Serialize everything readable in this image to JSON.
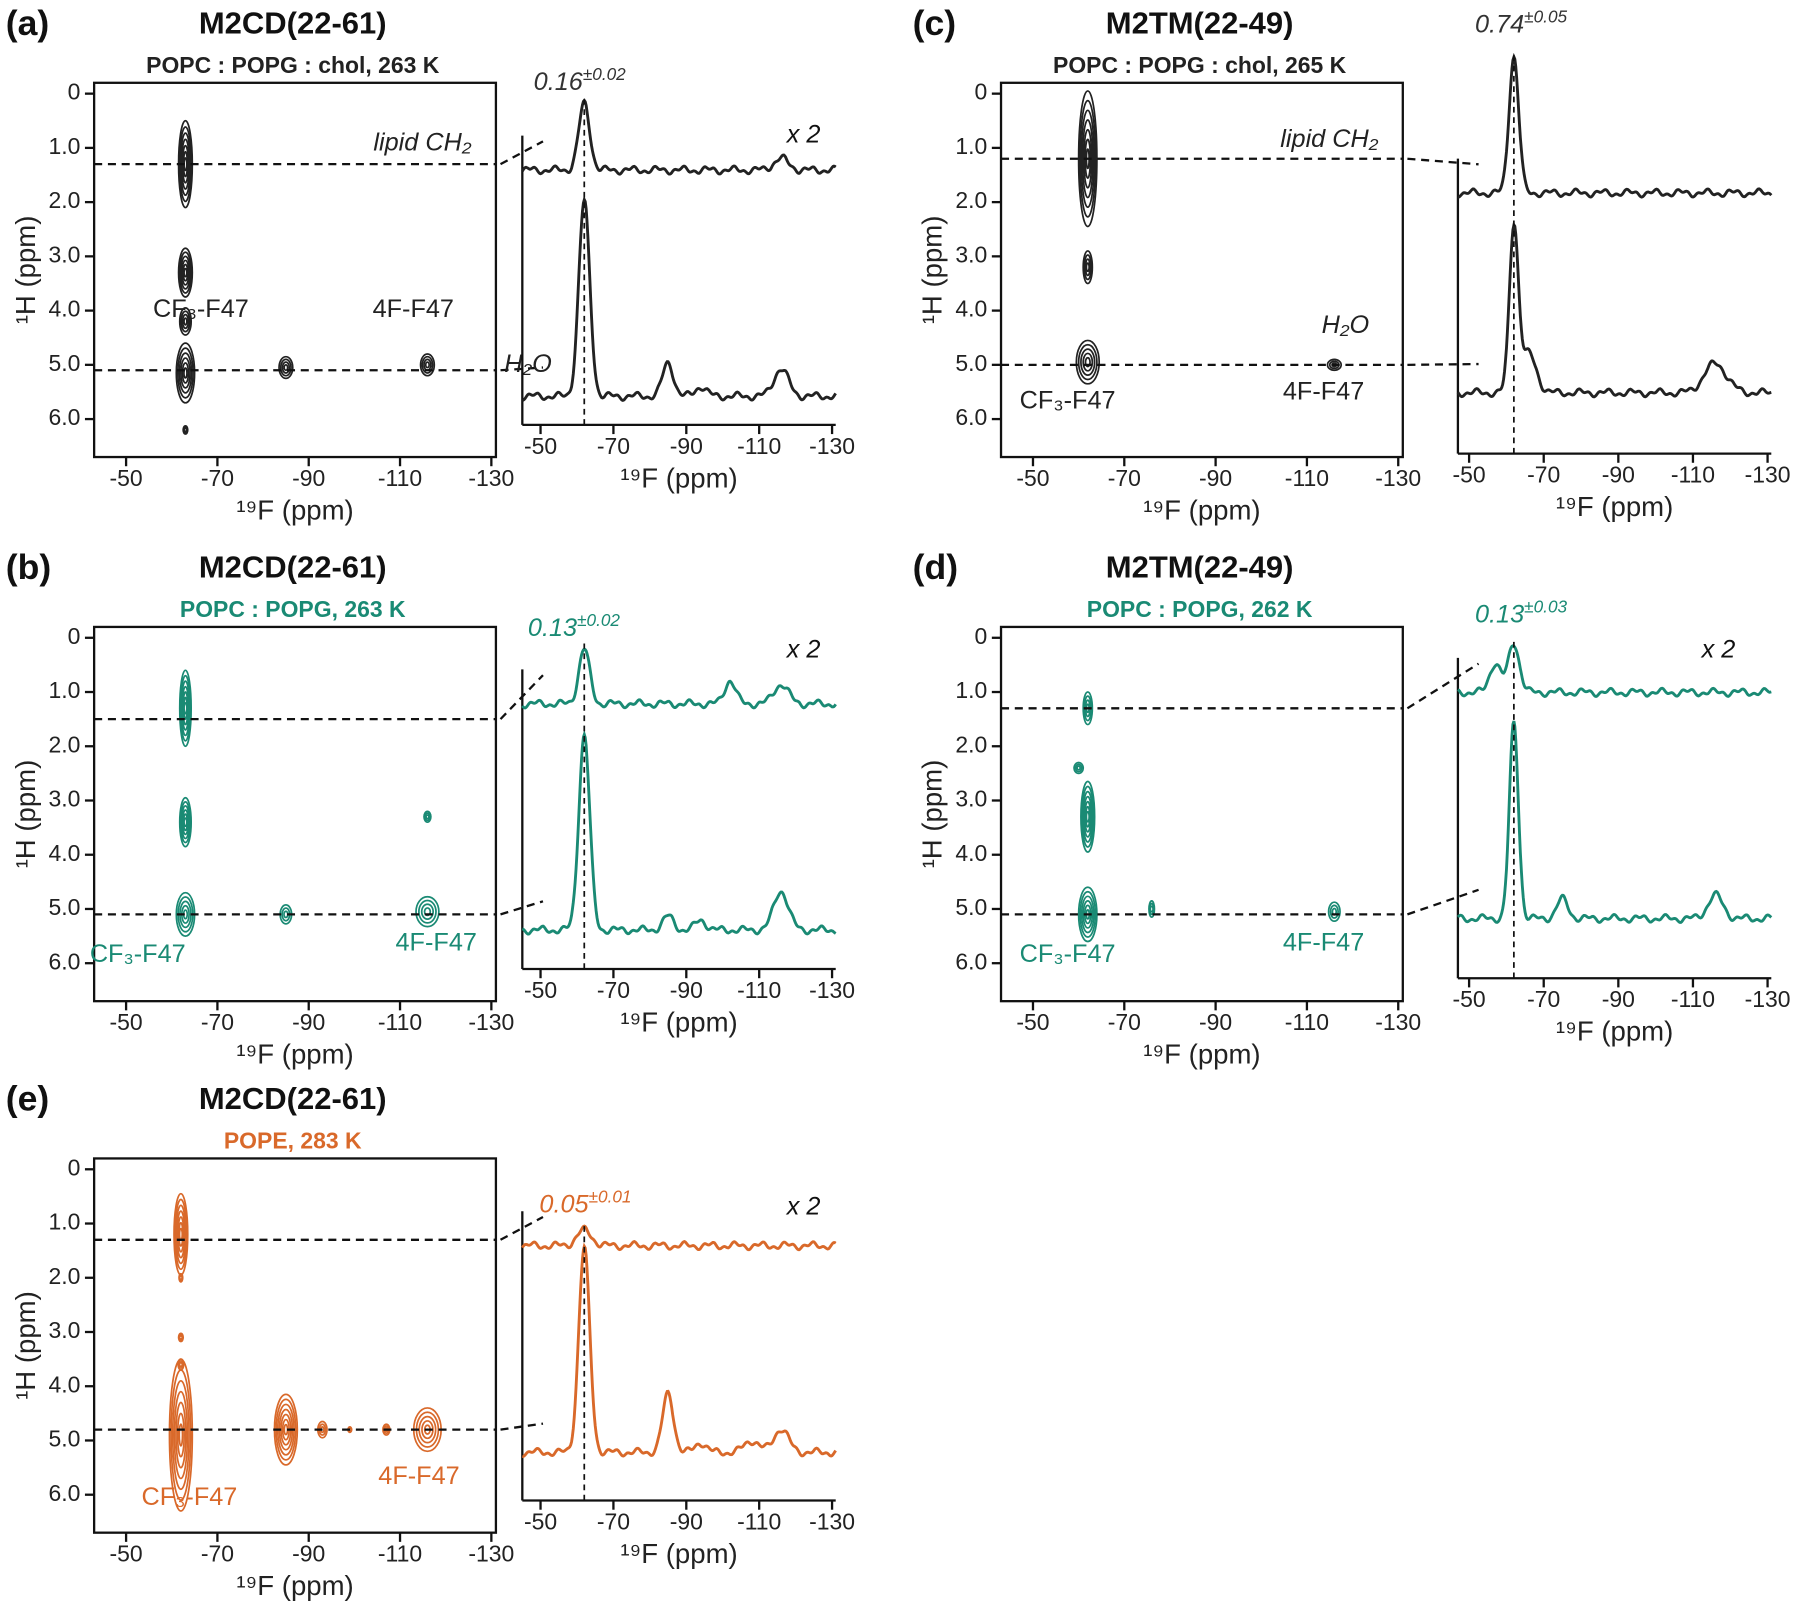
{
  "panels": [
    {
      "label": "(a)",
      "title": "M2CD(22-61)",
      "subtitle": "POPC : POPG : chol, 263 K",
      "color": "#222222",
      "contour": {
        "xlabel": "¹⁹F (ppm)",
        "ylabel": "¹H (ppm)",
        "xlim": [
          -43,
          -131
        ],
        "ylim": [
          -0.2,
          6.7
        ],
        "xticks": [
          -50,
          -70,
          -90,
          -110,
          -130
        ],
        "yticks": [
          0,
          {
            "value": 1,
            "label": "1.0"
          },
          {
            "value": 2,
            "label": "2.0"
          },
          {
            "value": 3,
            "label": "3.0"
          },
          {
            "value": 4,
            "label": "4.0"
          },
          {
            "value": 5,
            "label": "5.0"
          },
          {
            "value": 6,
            "label": "6.0"
          }
        ],
        "slices": [
          1.3,
          5.1
        ],
        "peak_labels": [
          "CF₃-F47",
          "4F-F47"
        ],
        "slice_labels": [
          "lipid CH₂",
          "H₂O"
        ],
        "peaks": [
          {
            "f": -63,
            "h": 1.3,
            "df": 3,
            "dh": 1.6
          },
          {
            "f": -63,
            "h": 3.3,
            "df": 3,
            "dh": 0.9
          },
          {
            "f": -63,
            "h": 4.2,
            "df": 2.5,
            "dh": 0.5
          },
          {
            "f": -63,
            "h": 5.15,
            "df": 4,
            "dh": 1.1
          },
          {
            "f": -63,
            "h": 6.2,
            "df": 1,
            "dh": 0.15
          },
          {
            "f": -85,
            "h": 5.05,
            "df": 3,
            "dh": 0.4
          },
          {
            "f": -116,
            "h": 5.0,
            "df": 3,
            "dh": 0.4
          }
        ]
      },
      "spectrum": {
        "xlabel": "¹⁹F (ppm)",
        "xlim": [
          -45,
          -131
        ],
        "xticks": [
          -50,
          -70,
          -90,
          -110,
          -130
        ],
        "ratio": "0.16",
        "error": "±0.02",
        "scale": "x 2",
        "traces": [
          {
            "peaks": [
              {
                "f": -62,
                "a": 0.34,
                "w": 1.5
              },
              {
                "f": -116,
                "a": 0.06,
                "w": 2
              }
            ]
          },
          {
            "peaks": [
              {
                "f": -62,
                "a": 1,
                "w": 1.5
              },
              {
                "f": -85,
                "a": 0.17,
                "w": 1.5
              },
              {
                "f": -94,
                "a": 0.05,
                "w": 1.5
              },
              {
                "f": -116,
                "a": 0.14,
                "w": 2
              }
            ]
          }
        ]
      }
    },
    {
      "label": "(b)",
      "title": "M2CD(22-61)",
      "subtitle": "POPC : POPG, 263 K",
      "color": "#1a8a74",
      "contour": {
        "xlabel": "¹⁹F (ppm)",
        "ylabel": "¹H (ppm)",
        "xlim": [
          -43,
          -131
        ],
        "ylim": [
          -0.2,
          6.7
        ],
        "xticks": [
          -50,
          -70,
          -90,
          -110,
          -130
        ],
        "yticks": [
          0,
          {
            "value": 1,
            "label": "1.0"
          },
          {
            "value": 2,
            "label": "2.0"
          },
          {
            "value": 3,
            "label": "3.0"
          },
          {
            "value": 4,
            "label": "4.0"
          },
          {
            "value": 5,
            "label": "5.0"
          },
          {
            "value": 6,
            "label": "6.0"
          }
        ],
        "slices": [
          1.5,
          5.1
        ],
        "peak_labels": [
          "CF₃-F47",
          "4F-F47"
        ],
        "peaks": [
          {
            "f": -63,
            "h": 1.3,
            "df": 2.5,
            "dh": 1.4
          },
          {
            "f": -63,
            "h": 3.4,
            "df": 2.5,
            "dh": 0.9
          },
          {
            "f": -116,
            "h": 3.3,
            "df": 1.5,
            "dh": 0.2
          },
          {
            "f": -63,
            "h": 5.1,
            "df": 4,
            "dh": 0.8
          },
          {
            "f": -85,
            "h": 5.1,
            "df": 2.5,
            "dh": 0.35
          },
          {
            "f": -116,
            "h": 5.05,
            "df": 5,
            "dh": 0.55
          }
        ]
      },
      "spectrum": {
        "xlabel": "¹⁹F (ppm)",
        "xlim": [
          -45,
          -131
        ],
        "xticks": [
          -50,
          -70,
          -90,
          -110,
          -130
        ],
        "ratio": "0.13",
        "error": "±0.02",
        "scale": "x 2",
        "traces": [
          {
            "peaks": [
              {
                "f": -62,
                "a": 0.28,
                "w": 1.5
              },
              {
                "f": -102,
                "a": 0.12,
                "w": 1.5
              },
              {
                "f": -116,
                "a": 0.1,
                "w": 2
              }
            ]
          },
          {
            "peaks": [
              {
                "f": -62,
                "a": 1,
                "w": 1.5
              },
              {
                "f": -85,
                "a": 0.07,
                "w": 1.5
              },
              {
                "f": -94,
                "a": 0.05,
                "w": 1.5
              },
              {
                "f": -116,
                "a": 0.2,
                "w": 2
              }
            ]
          }
        ]
      }
    },
    {
      "label": "(c)",
      "title": "M2TM(22-49)",
      "subtitle": "POPC : POPG : chol, 265 K",
      "color": "#222222",
      "contour": {
        "xlabel": "¹⁹F (ppm)",
        "ylabel": "¹H (ppm)",
        "xlim": [
          -43,
          -131
        ],
        "ylim": [
          -0.2,
          6.7
        ],
        "xticks": [
          -50,
          -70,
          -90,
          -110,
          -130
        ],
        "yticks": [
          0,
          {
            "value": 1,
            "label": "1.0"
          },
          {
            "value": 2,
            "label": "2.0"
          },
          {
            "value": 3,
            "label": "3.0"
          },
          {
            "value": 4,
            "label": "4.0"
          },
          {
            "value": 5,
            "label": "5.0"
          },
          {
            "value": 6,
            "label": "6.0"
          }
        ],
        "slices": [
          1.2,
          5.0
        ],
        "peak_labels": [
          "CF₃-F47",
          "4F-F47"
        ],
        "slice_labels": [
          "lipid CH₂",
          "H₂O"
        ],
        "peaks": [
          {
            "f": -62,
            "h": 1.2,
            "df": 4,
            "dh": 2.5
          },
          {
            "f": -62,
            "h": 3.2,
            "df": 2,
            "dh": 0.6
          },
          {
            "f": -62,
            "h": 4.95,
            "df": 5,
            "dh": 0.8
          },
          {
            "f": -116,
            "h": 5.0,
            "df": 3,
            "dh": 0.2
          }
        ]
      },
      "spectrum": {
        "xlabel": "¹⁹F (ppm)",
        "xlim": [
          -47,
          -131
        ],
        "xticks": [
          -50,
          -70,
          -90,
          -110,
          -130
        ],
        "ratio": "0.74",
        "error": "±0.05",
        "traces": [
          {
            "peaks": [
              {
                "f": -62,
                "a": 0.7,
                "w": 1.3
              }
            ]
          },
          {
            "peaks": [
              {
                "f": -62,
                "a": 0.85,
                "w": 1.2
              },
              {
                "f": -66,
                "a": 0.2,
                "w": 2
              },
              {
                "f": -116,
                "a": 0.15,
                "w": 3
              }
            ]
          }
        ]
      }
    },
    {
      "label": "(d)",
      "title": "M2TM(22-49)",
      "subtitle": "POPC : POPG, 262 K",
      "color": "#1a8a74",
      "contour": {
        "xlabel": "¹⁹F (ppm)",
        "ylabel": "¹H (ppm)",
        "xlim": [
          -43,
          -131
        ],
        "ylim": [
          -0.2,
          6.7
        ],
        "xticks": [
          -50,
          -70,
          -90,
          -110,
          -130
        ],
        "yticks": [
          0,
          {
            "value": 1,
            "label": "1.0"
          },
          {
            "value": 2,
            "label": "2.0"
          },
          {
            "value": 3,
            "label": "3.0"
          },
          {
            "value": 4,
            "label": "4.0"
          },
          {
            "value": 5,
            "label": "5.0"
          },
          {
            "value": 6,
            "label": "6.0"
          }
        ],
        "slices": [
          1.3,
          5.1
        ],
        "peak_labels": [
          "CF₃-F47",
          "4F-F47"
        ],
        "peaks": [
          {
            "f": -62,
            "h": 1.3,
            "df": 2,
            "dh": 0.6
          },
          {
            "f": -60,
            "h": 2.4,
            "df": 2,
            "dh": 0.2
          },
          {
            "f": -62,
            "h": 3.3,
            "df": 3,
            "dh": 1.3
          },
          {
            "f": -62,
            "h": 5.1,
            "df": 4,
            "dh": 1.0
          },
          {
            "f": -76,
            "h": 5.0,
            "df": 1.2,
            "dh": 0.3
          },
          {
            "f": -116,
            "h": 5.05,
            "df": 2.5,
            "dh": 0.35
          }
        ]
      },
      "spectrum": {
        "xlabel": "¹⁹F (ppm)",
        "xlim": [
          -47,
          -131
        ],
        "xticks": [
          -50,
          -70,
          -90,
          -110,
          -130
        ],
        "ratio": "0.13",
        "error": "±0.03",
        "scale": "x 2",
        "traces": [
          {
            "peaks": [
              {
                "f": -62,
                "a": 0.25,
                "w": 1.5
              },
              {
                "f": -57,
                "a": 0.15,
                "w": 1.5
              }
            ]
          },
          {
            "peaks": [
              {
                "f": -62,
                "a": 1,
                "w": 1.2
              },
              {
                "f": -75,
                "a": 0.1,
                "w": 1.5
              },
              {
                "f": -116,
                "a": 0.12,
                "w": 2
              }
            ]
          }
        ]
      }
    },
    {
      "label": "(e)",
      "title": "M2CD(22-61)",
      "subtitle": "POPE, 283 K",
      "color": "#d9692a",
      "contour": {
        "xlabel": "¹⁹F (ppm)",
        "ylabel": "¹H (ppm)",
        "xlim": [
          -43,
          -131
        ],
        "ylim": [
          -0.2,
          6.7
        ],
        "xticks": [
          -50,
          -70,
          -90,
          -110,
          -130
        ],
        "yticks": [
          0,
          {
            "value": 1,
            "label": "1.0"
          },
          {
            "value": 2,
            "label": "2.0"
          },
          {
            "value": 3,
            "label": "3.0"
          },
          {
            "value": 4,
            "label": "4.0"
          },
          {
            "value": 5,
            "label": "5.0"
          },
          {
            "value": 6,
            "label": "6.0"
          }
        ],
        "slices": [
          1.3,
          4.8
        ],
        "peak_labels": [
          "CF₃-F47",
          "4F-F47"
        ],
        "peaks": [
          {
            "f": -62,
            "h": 1.2,
            "df": 3,
            "dh": 1.5
          },
          {
            "f": -62,
            "h": 2.0,
            "df": 0.8,
            "dh": 0.15
          },
          {
            "f": -62,
            "h": 3.1,
            "df": 1,
            "dh": 0.15
          },
          {
            "f": -62,
            "h": 3.6,
            "df": 1.2,
            "dh": 0.2
          },
          {
            "f": -62,
            "h": 4.9,
            "df": 5,
            "dh": 2.8
          },
          {
            "f": -85,
            "h": 4.8,
            "df": 5,
            "dh": 1.3
          },
          {
            "f": -93,
            "h": 4.8,
            "df": 2,
            "dh": 0.3
          },
          {
            "f": -99,
            "h": 4.8,
            "df": 0.8,
            "dh": 0.1
          },
          {
            "f": -107,
            "h": 4.8,
            "df": 1.5,
            "dh": 0.2
          },
          {
            "f": -116,
            "h": 4.8,
            "df": 6,
            "dh": 0.8
          }
        ]
      },
      "spectrum": {
        "xlabel": "¹⁹F (ppm)",
        "xlim": [
          -45,
          -131
        ],
        "xticks": [
          -50,
          -70,
          -90,
          -110,
          -130
        ],
        "ratio": "0.05",
        "error": "±0.01",
        "scale": "x 2",
        "traces": [
          {
            "peaks": [
              {
                "f": -62,
                "a": 0.08,
                "w": 2
              }
            ]
          },
          {
            "peaks": [
              {
                "f": -62,
                "a": 1.05,
                "w": 1.5
              },
              {
                "f": -85,
                "a": 0.3,
                "w": 1.5
              },
              {
                "f": -94,
                "a": 0.05,
                "w": 1.5
              },
              {
                "f": -108,
                "a": 0.06,
                "w": 2
              },
              {
                "f": -116,
                "a": 0.12,
                "w": 2
              }
            ]
          }
        ]
      }
    }
  ]
}
